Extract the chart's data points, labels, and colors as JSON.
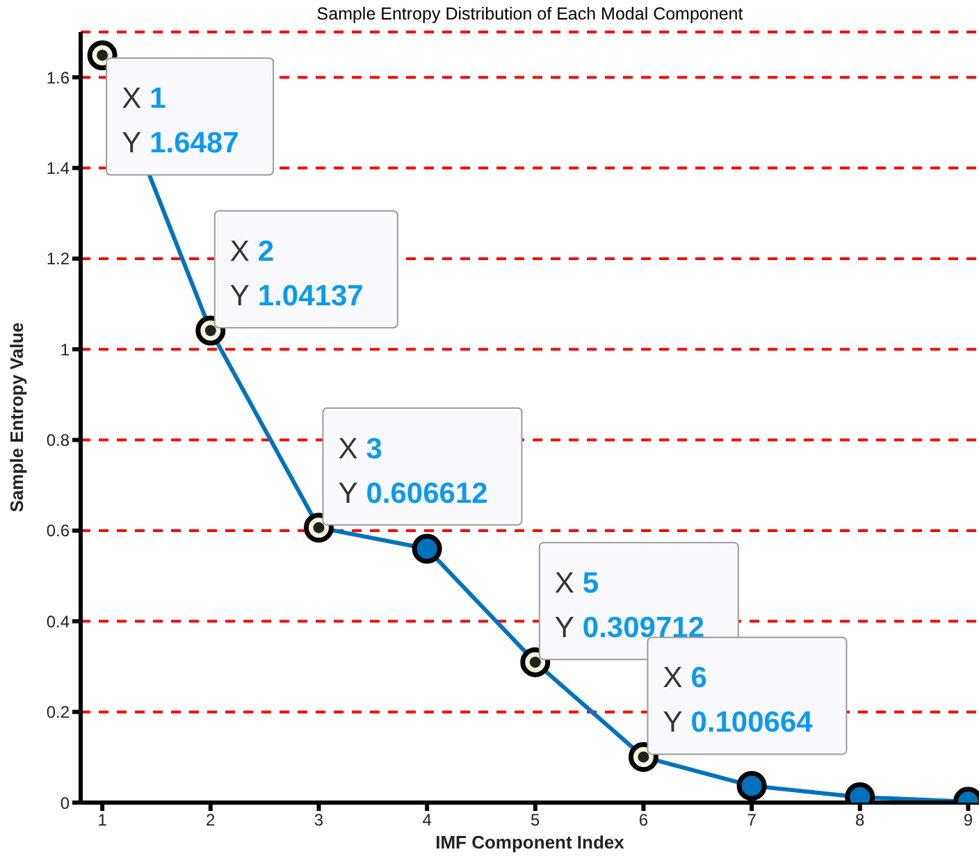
{
  "chart_data": {
    "type": "line",
    "title": "Sample Entropy Distribution of Each Modal Component",
    "xlabel": "IMF Component Index",
    "ylabel": "Sample Entropy Value",
    "x": [
      1,
      2,
      3,
      4,
      5,
      6,
      7,
      8,
      9
    ],
    "series": [
      {
        "color": "#0072bd",
        "values": [
          1.6487,
          1.04137,
          0.606612,
          0.56,
          0.309712,
          0.100664,
          0.037,
          0.012,
          0.002
        ]
      }
    ],
    "xlim": [
      0.8,
      9.1
    ],
    "xticks": [
      1,
      2,
      3,
      4,
      5,
      6,
      7,
      8,
      9
    ],
    "ylim": [
      0,
      1.7
    ],
    "yticks": [
      0,
      0.2,
      0.4,
      0.6,
      0.8,
      1,
      1.2,
      1.4,
      1.6
    ],
    "grid": "y",
    "marker": "circle",
    "line_style": "solid",
    "annotations": [
      {
        "text": "X 1\nY 1.6487",
        "x": 1,
        "y": 1.6487
      },
      {
        "text": "X 2\nY 1.04137",
        "x": 2,
        "y": 1.04137
      },
      {
        "text": "X 3\nY 0.606612",
        "x": 3,
        "y": 0.606612
      },
      {
        "text": "X 5\nY 0.309712",
        "x": 5,
        "y": 0.309712
      },
      {
        "text": "X 6\nY 0.100664",
        "x": 6,
        "y": 0.100664
      }
    ]
  }
}
